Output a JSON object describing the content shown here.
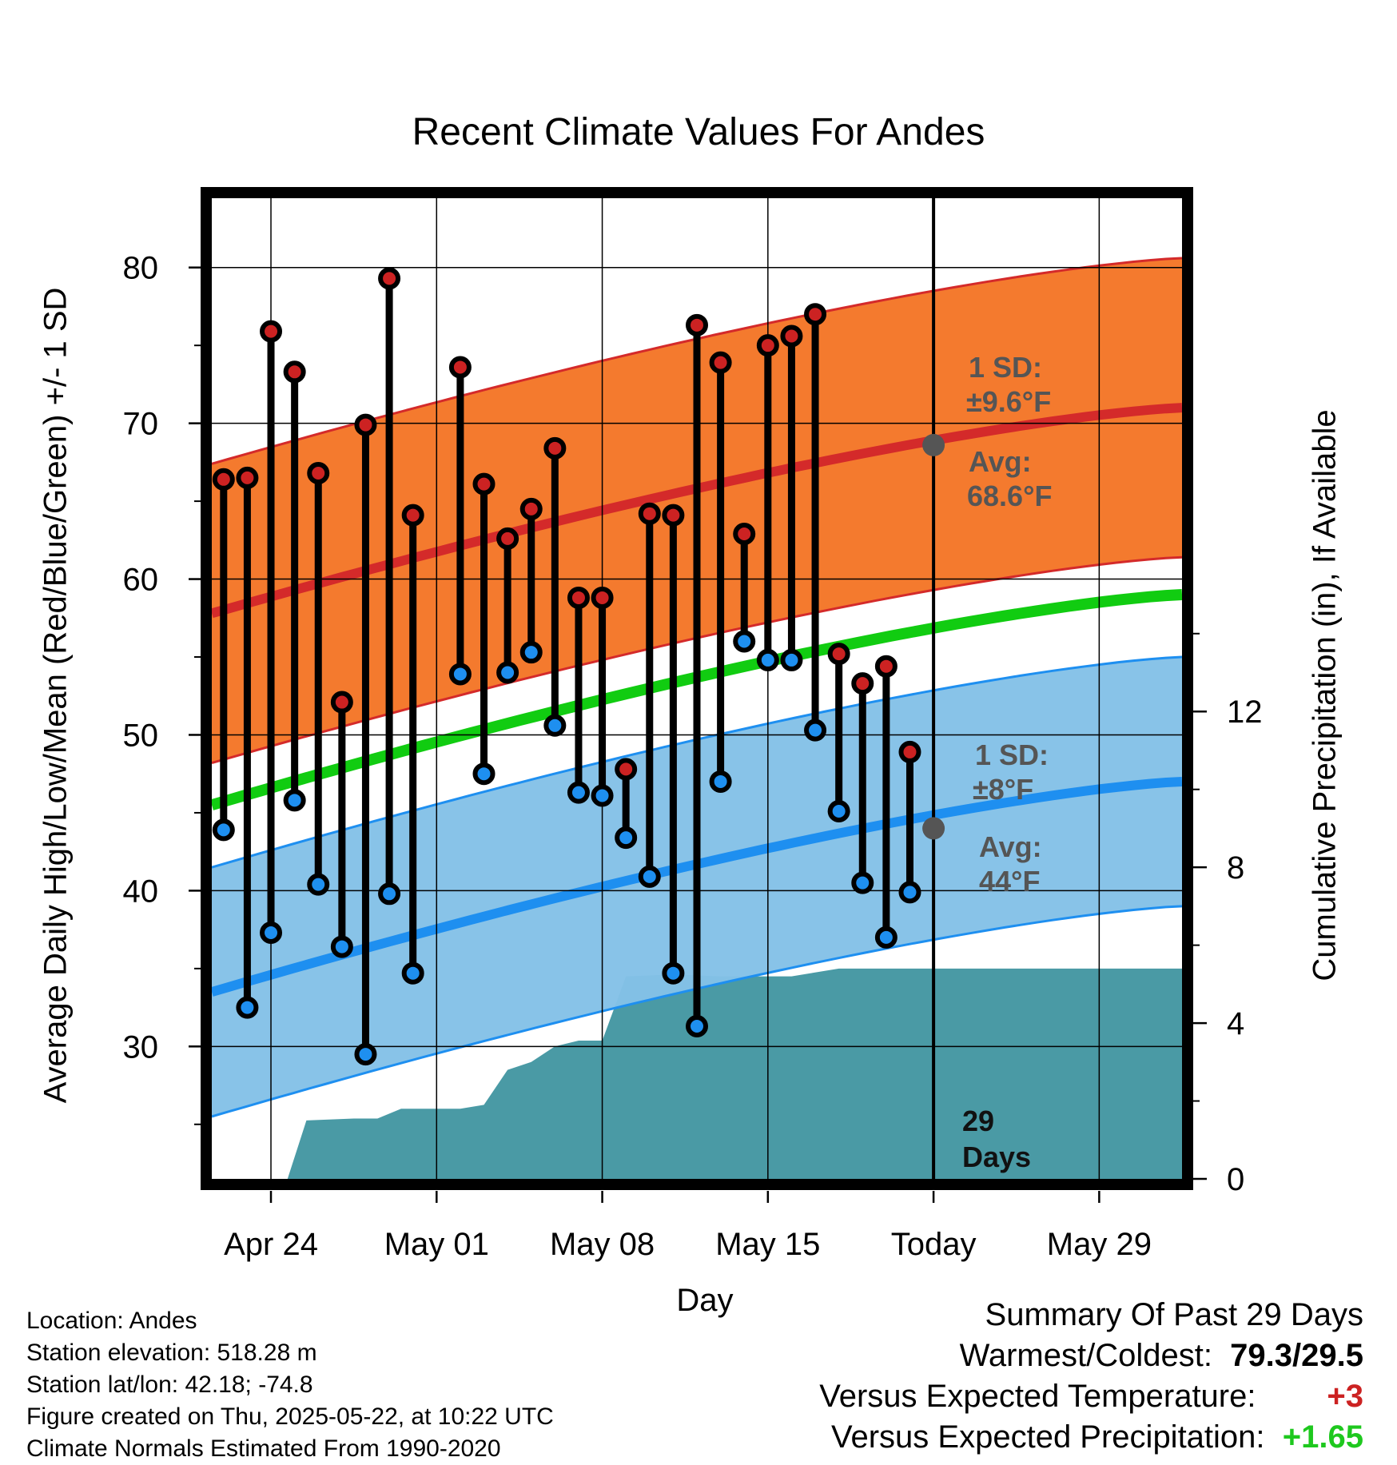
{
  "title": "Recent Climate Values For Andes",
  "y_left_label": "Average Daily High/Low/Mean (Red/Blue/Green) +/- 1 SD",
  "y_right_label": "Cumulative Precipitation (in), If Available",
  "x_label": "Day",
  "colors": {
    "high_band": "#f47a2e",
    "high_line": "#d42a2a",
    "low_band": "#84c1e7",
    "low_line": "#1e8ff0",
    "mean_line": "#11cc11",
    "precip": "#4a9aa5",
    "high_dot": "#cc2222",
    "low_dot": "#1e8ff0"
  },
  "annotations": {
    "high_sd_label": "1 SD:",
    "high_sd_value": "±9.6°F",
    "high_avg_label": "Avg:",
    "high_avg_value": "68.6°F",
    "low_sd_label": "1 SD:",
    "low_sd_value": "±8°F",
    "low_avg_label": "Avg:",
    "low_avg_value": "44°F",
    "days_count": "29",
    "days_word": "Days"
  },
  "footer": {
    "location": "Location: Andes",
    "elevation": "Station elevation: 518.28 m",
    "latlon": "Station lat/lon: 42.18; -74.8",
    "created": "Figure created on Thu, 2025-05-22, at 10:22 UTC",
    "normals": "Climate Normals Estimated From 1990-2020"
  },
  "summary": {
    "heading": "Summary Of Past 29 Days",
    "warm_cold_label": "Warmest/Coldest:",
    "warm_cold_value": "79.3/29.5",
    "temp_label": "Versus Expected Temperature:",
    "temp_value": "+3",
    "precip_label": "Versus Expected Precipitation:",
    "precip_value": "+1.65"
  },
  "chart_data": {
    "type": "line",
    "x_start": "Apr 22",
    "x_range_days": [
      0.5,
      41.5
    ],
    "x_ticks": [
      {
        "day": 3,
        "label": "Apr 24"
      },
      {
        "day": 10,
        "label": "May 01"
      },
      {
        "day": 17,
        "label": "May 08"
      },
      {
        "day": 24,
        "label": "May 15"
      },
      {
        "day": 31,
        "label": "Today"
      },
      {
        "day": 38,
        "label": "May 29"
      }
    ],
    "y_left_range": [
      21.5,
      84.5
    ],
    "y_left_ticks": [
      30,
      40,
      50,
      60,
      70,
      80
    ],
    "y_right_range": [
      0,
      25.2
    ],
    "y_right_ticks": [
      0,
      4,
      8,
      12
    ],
    "today_day": 31,
    "normals": {
      "days": [
        0.5,
        41.5
      ],
      "avg_high": [
        57.8,
        71.0
      ],
      "avg_low": [
        33.5,
        47.0
      ],
      "avg_mean": [
        45.5,
        59.0
      ],
      "high_sd": 9.6,
      "low_sd": 8.0
    },
    "today_avg_high": 68.6,
    "today_avg_low": 44,
    "daily": [
      {
        "day": 1,
        "high": 66.4,
        "low": 43.9
      },
      {
        "day": 2,
        "high": 66.5,
        "low": 32.5
      },
      {
        "day": 3,
        "high": 75.9,
        "low": 37.3
      },
      {
        "day": 4,
        "high": 73.3,
        "low": 45.8
      },
      {
        "day": 5,
        "high": 66.8,
        "low": 40.4
      },
      {
        "day": 6,
        "high": 52.1,
        "low": 36.4
      },
      {
        "day": 7,
        "high": 69.9,
        "low": 29.5
      },
      {
        "day": 8,
        "high": 79.3,
        "low": 39.8
      },
      {
        "day": 9,
        "high": 64.1,
        "low": 34.7
      },
      {
        "day": 11,
        "high": 73.6,
        "low": 53.9
      },
      {
        "day": 12,
        "high": 66.1,
        "low": 47.5
      },
      {
        "day": 13,
        "high": 62.6,
        "low": 54.0
      },
      {
        "day": 14,
        "high": 64.5,
        "low": 55.3
      },
      {
        "day": 15,
        "high": 68.4,
        "low": 50.6
      },
      {
        "day": 16,
        "high": 58.8,
        "low": 46.3
      },
      {
        "day": 17,
        "high": 58.8,
        "low": 46.1
      },
      {
        "day": 18,
        "high": 47.8,
        "low": 43.4
      },
      {
        "day": 19,
        "high": 64.2,
        "low": 40.9
      },
      {
        "day": 20,
        "high": 64.1,
        "low": 34.7
      },
      {
        "day": 21,
        "high": 76.3,
        "low": 31.3
      },
      {
        "day": 22,
        "high": 73.9,
        "low": 47.0
      },
      {
        "day": 23,
        "high": 62.9,
        "low": 56.0
      },
      {
        "day": 24,
        "high": 75.0,
        "low": 54.8
      },
      {
        "day": 25,
        "high": 75.6,
        "low": 54.8
      },
      {
        "day": 26,
        "high": 77.0,
        "low": 50.3
      },
      {
        "day": 27,
        "high": 55.2,
        "low": 45.1
      },
      {
        "day": 28,
        "high": 53.3,
        "low": 40.5
      },
      {
        "day": 29,
        "high": 54.4,
        "low": 37.0
      },
      {
        "day": 30,
        "high": 48.9,
        "low": 39.9
      }
    ],
    "precip_cumulative": [
      {
        "day": 3.7,
        "value": 0
      },
      {
        "day": 4.5,
        "value": 1.5
      },
      {
        "day": 6.5,
        "value": 1.55
      },
      {
        "day": 7.5,
        "value": 1.55
      },
      {
        "day": 8.5,
        "value": 1.8
      },
      {
        "day": 11,
        "value": 1.8
      },
      {
        "day": 12,
        "value": 1.9
      },
      {
        "day": 13,
        "value": 2.8
      },
      {
        "day": 14,
        "value": 3.0
      },
      {
        "day": 15,
        "value": 3.4
      },
      {
        "day": 16,
        "value": 3.55
      },
      {
        "day": 17,
        "value": 3.55
      },
      {
        "day": 18,
        "value": 5.2
      },
      {
        "day": 20,
        "value": 5.25
      },
      {
        "day": 22,
        "value": 5.2
      },
      {
        "day": 25,
        "value": 5.2
      },
      {
        "day": 27,
        "value": 5.4
      },
      {
        "day": 41.5,
        "value": 5.4
      }
    ]
  }
}
